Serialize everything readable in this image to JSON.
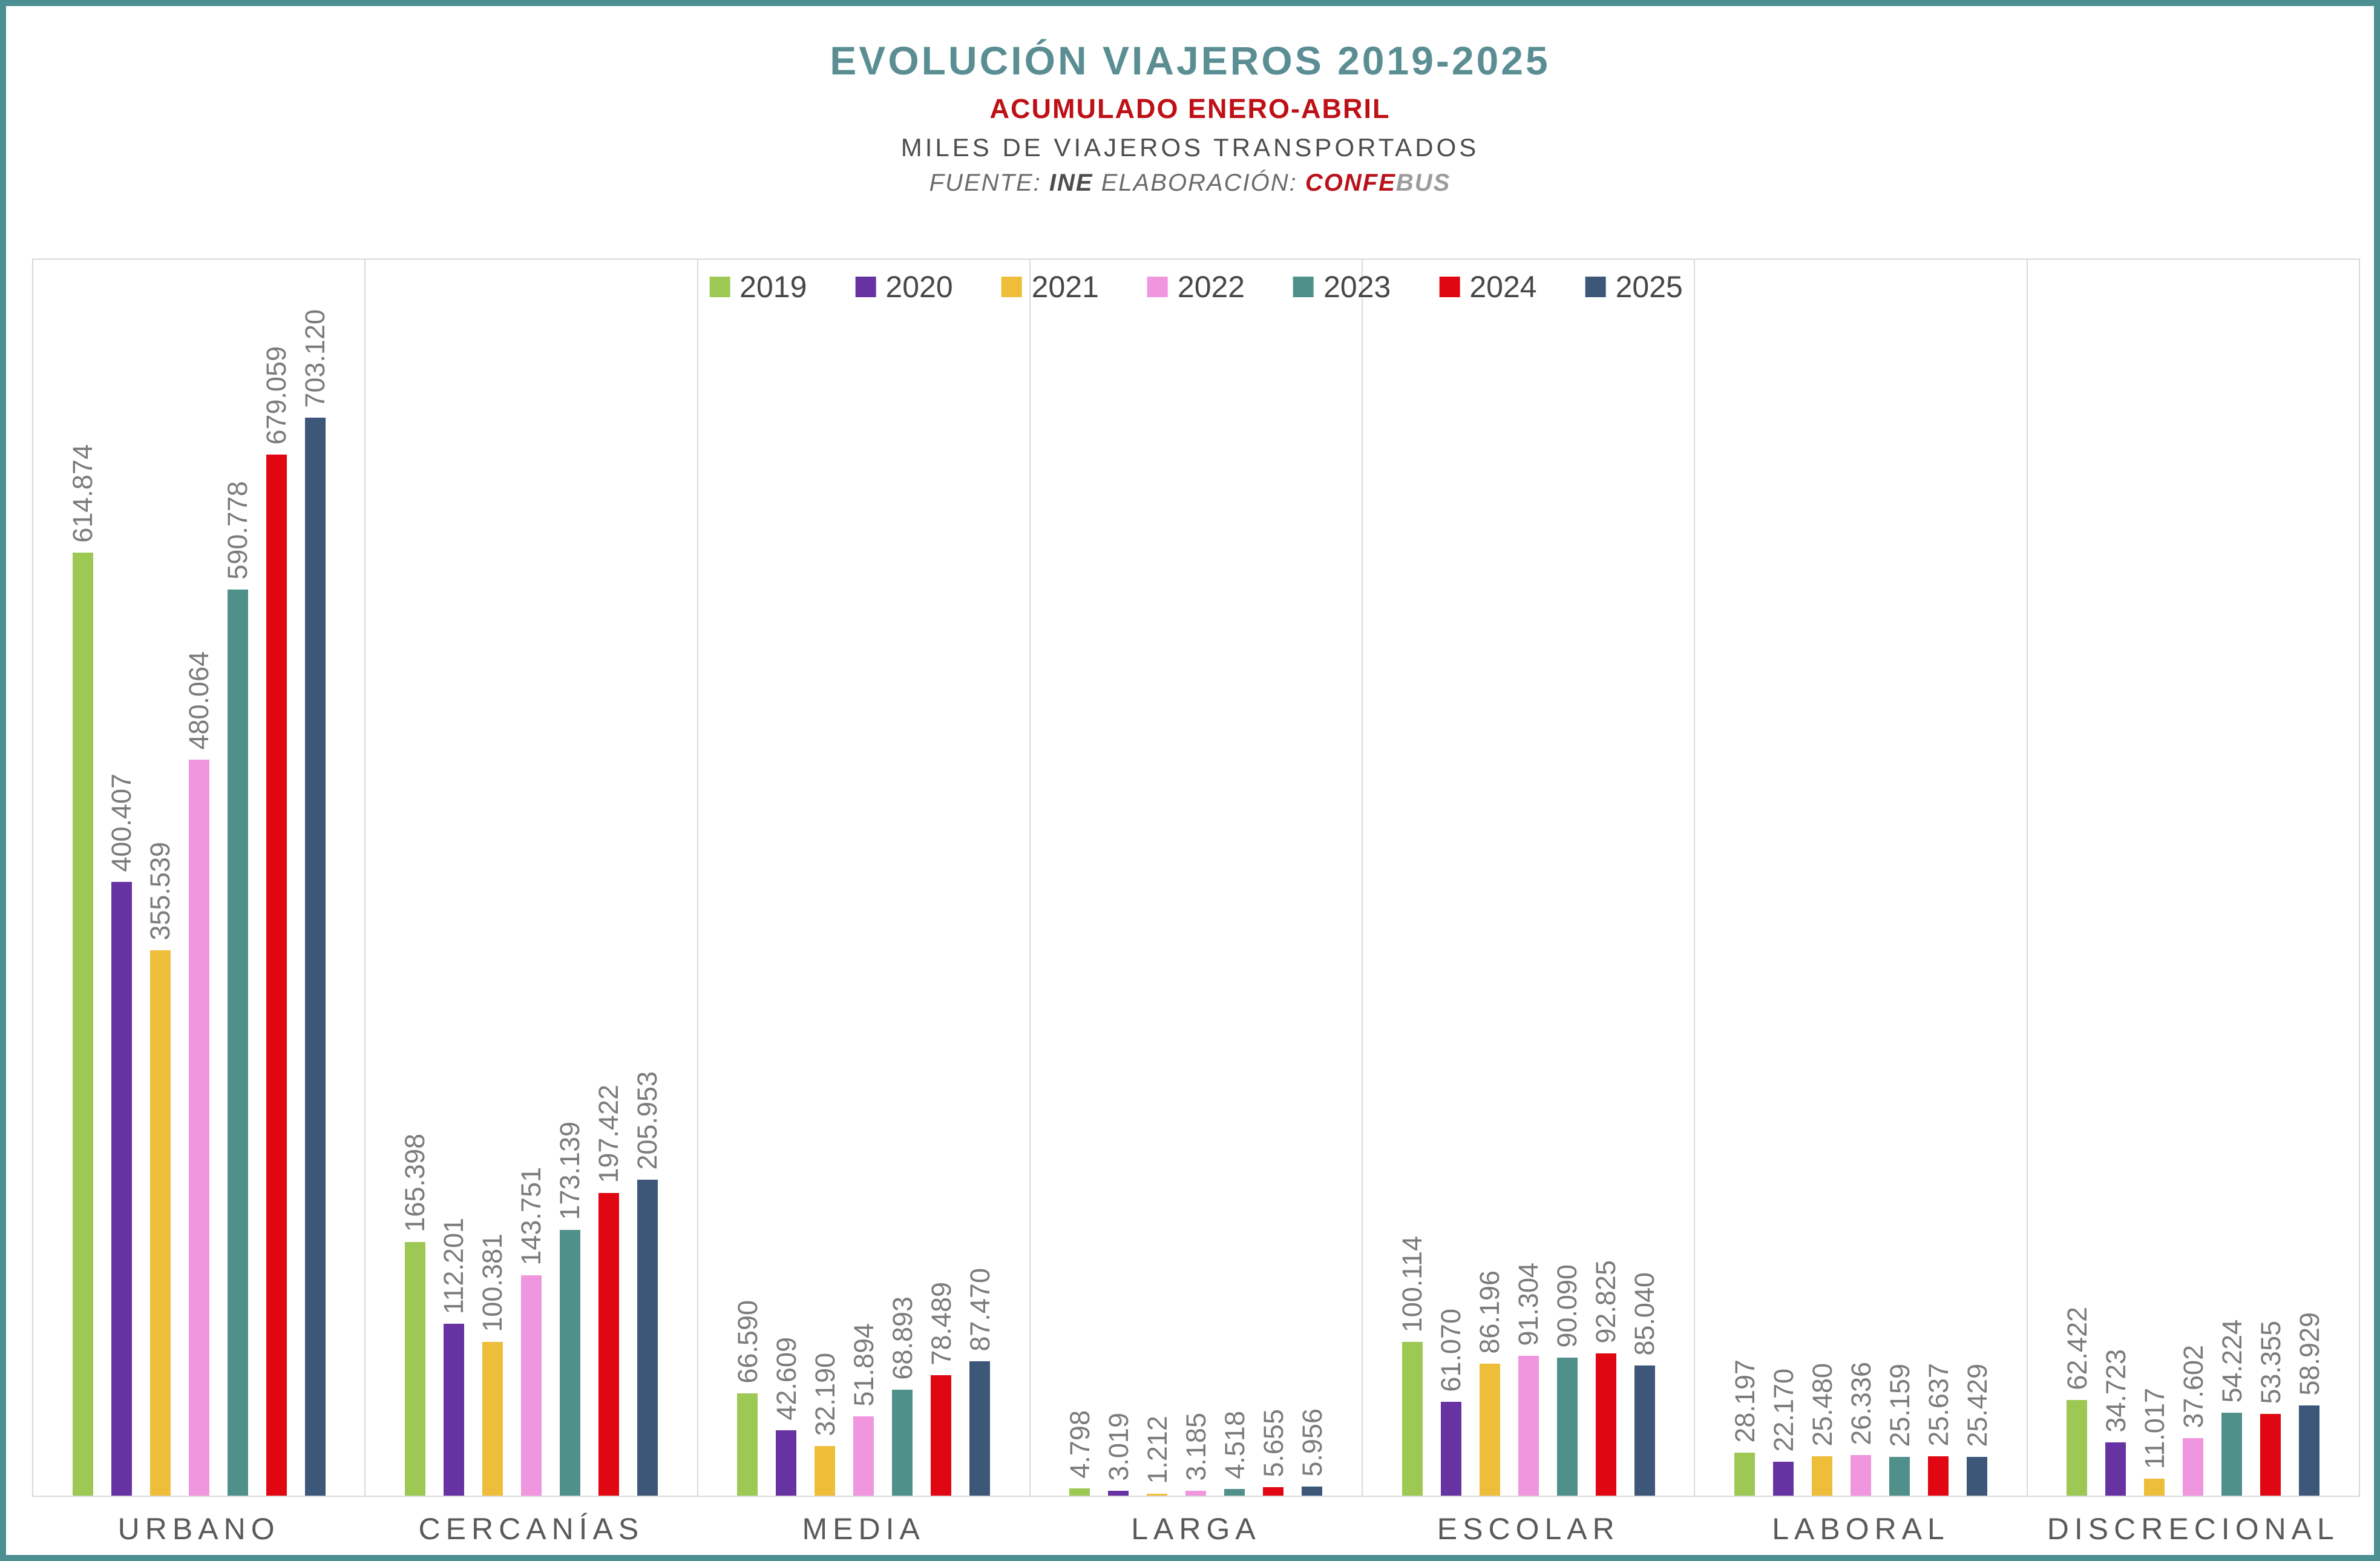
{
  "frame": {
    "border_color": "#4C9094",
    "background": "#FFFFFF"
  },
  "header": {
    "title": "EVOLUCIÓN VIAJEROS 2019-2025",
    "subtitle": "ACUMULADO ENERO-ABRIL",
    "units_line": "MILES DE VIAJEROS TRANSPORTADOS",
    "source": {
      "fuente_label": "FUENTE:",
      "fuente_value": "INE",
      "elaboracion_label": "ELABORACIÓN:",
      "brand_confe": "CONFE",
      "brand_bus": "BUS"
    }
  },
  "chart_data": {
    "type": "bar",
    "title": "EVOLUCIÓN VIAJEROS 2019-2025",
    "subtitle": "ACUMULADO ENERO-ABRIL",
    "units": "MILES DE VIAJEROS TRANSPORTADOS",
    "source_text": "FUENTE: INE ELABORACIÓN: CONFEBUS",
    "legend_position": "top-center",
    "grid": "vertical-panel-separators",
    "value_labels_rotation": "vertical",
    "ylim": [
      0,
      806000
    ],
    "categories": [
      "URBANO",
      "CERCANÍAS",
      "MEDIA",
      "LARGA",
      "ESCOLAR",
      "LABORAL",
      "DISCRECIONAL"
    ],
    "series": [
      {
        "name": "2019",
        "color": "#9DC854",
        "values": [
          614874,
          165398,
          66590,
          4798,
          100114,
          28197,
          62422
        ],
        "labels": [
          "614.874",
          "165.398",
          "66.590",
          "4.798",
          "100.114",
          "28.197",
          "62.422"
        ]
      },
      {
        "name": "2020",
        "color": "#6733A3",
        "values": [
          400407,
          112201,
          42609,
          3019,
          61070,
          22170,
          34723
        ],
        "labels": [
          "400.407",
          "112.201",
          "42.609",
          "3.019",
          "61.070",
          "22.170",
          "34.723"
        ]
      },
      {
        "name": "2021",
        "color": "#EEBE3A",
        "values": [
          355539,
          100381,
          32190,
          1212,
          86196,
          25480,
          11017
        ],
        "labels": [
          "355.539",
          "100.381",
          "32.190",
          "1.212",
          "86.196",
          "25.480",
          "11.017"
        ]
      },
      {
        "name": "2022",
        "color": "#F096DE",
        "values": [
          480064,
          143751,
          51894,
          3185,
          91304,
          26336,
          37602
        ],
        "labels": [
          "480.064",
          "143.751",
          "51.894",
          "3.185",
          "91.304",
          "26.336",
          "37.602"
        ]
      },
      {
        "name": "2023",
        "color": "#4F918A",
        "values": [
          590778,
          173139,
          68893,
          4518,
          90090,
          25159,
          54224
        ],
        "labels": [
          "590.778",
          "173.139",
          "68.893",
          "4.518",
          "90.090",
          "25.159",
          "54.224"
        ]
      },
      {
        "name": "2024",
        "color": "#E00713",
        "values": [
          679059,
          197422,
          78489,
          5655,
          92825,
          25637,
          53355
        ],
        "labels": [
          "679.059",
          "197.422",
          "78.489",
          "5.655",
          "92.825",
          "25.637",
          "53.355"
        ]
      },
      {
        "name": "2025",
        "color": "#3D5779",
        "values": [
          703120,
          205953,
          87470,
          5956,
          85040,
          25429,
          58929
        ],
        "labels": [
          "703.120",
          "205.953",
          "87.470",
          "5.956",
          "85.040",
          "25.429",
          "58.929"
        ]
      }
    ]
  }
}
